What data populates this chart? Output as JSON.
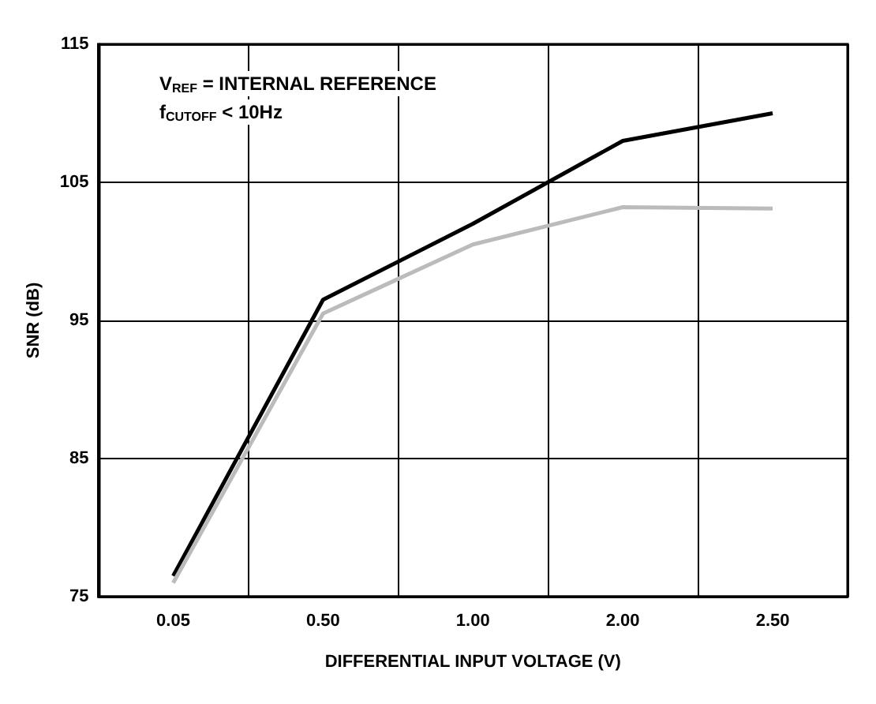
{
  "chart_data": {
    "type": "line",
    "xlabel": "DIFFERENTIAL INPUT VOLTAGE (V)",
    "ylabel": "SNR (dB)",
    "categories": [
      "0.05",
      "0.50",
      "1.00",
      "2.00",
      "2.50"
    ],
    "series": [
      {
        "color": "#000000",
        "values": [
          76.5,
          96.5,
          102,
          108,
          110
        ]
      },
      {
        "color": "#bbbbbb",
        "values": [
          76,
          95.5,
          100.5,
          103.2,
          103.1
        ]
      }
    ],
    "ylim": [
      75,
      115
    ],
    "yticks": [
      75,
      85,
      95,
      105,
      115
    ],
    "grid": true,
    "marker": "none",
    "line_style": "solid",
    "annotations": [
      "V$_{REF}$ = INTERNAL REFERENCE",
      "f$_{CUTOFF}$ < 10Hz"
    ]
  }
}
